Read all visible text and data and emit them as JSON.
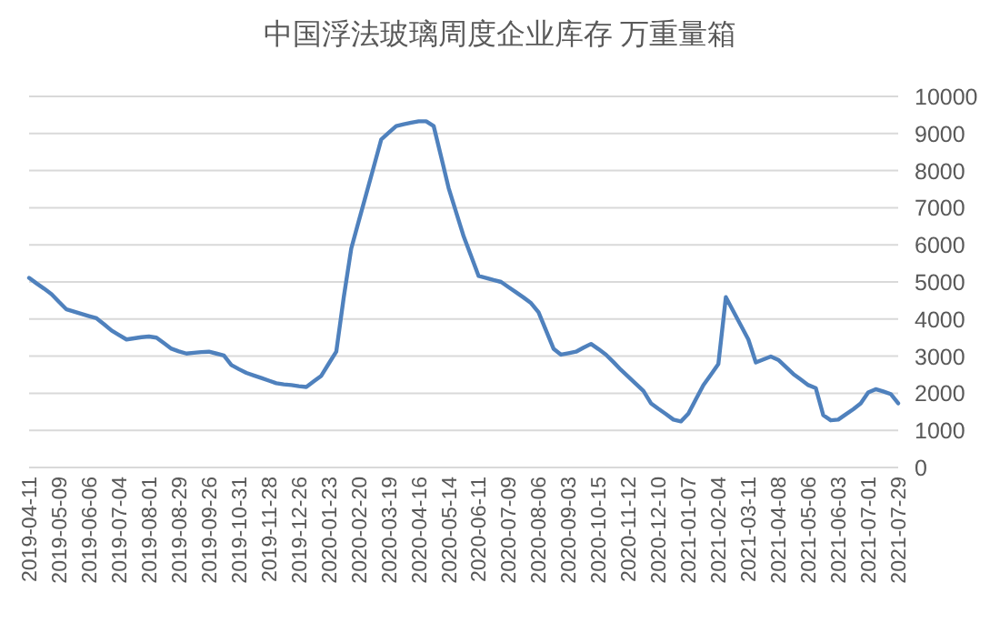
{
  "chart_data": {
    "type": "line",
    "title": "中国浮法玻璃周度企业库存 万重量箱",
    "categories": [
      "2019-04-11",
      null,
      null,
      null,
      "2019-05-09",
      null,
      null,
      null,
      "2019-06-06",
      null,
      null,
      null,
      "2019-07-04",
      null,
      null,
      null,
      "2019-08-01",
      null,
      null,
      null,
      "2019-08-29",
      null,
      null,
      null,
      "2019-09-26",
      null,
      null,
      null,
      "2019-10-31",
      null,
      null,
      null,
      "2019-11-28",
      null,
      null,
      null,
      "2019-12-26",
      null,
      null,
      null,
      "2020-01-23",
      null,
      null,
      null,
      "2020-02-20",
      null,
      null,
      null,
      "2020-03-19",
      null,
      null,
      null,
      "2020-04-16",
      null,
      null,
      null,
      "2020-05-14",
      null,
      null,
      null,
      "2020-06-11",
      null,
      null,
      null,
      "2020-07-09",
      null,
      null,
      null,
      "2020-08-06",
      null,
      null,
      null,
      "2020-09-03",
      null,
      null,
      null,
      "2020-10-15",
      null,
      null,
      null,
      "2020-11-12",
      null,
      null,
      null,
      "2020-12-10",
      null,
      null,
      null,
      "2021-01-07",
      null,
      null,
      null,
      "2021-02-04",
      null,
      null,
      null,
      "2021-03-11",
      null,
      null,
      null,
      "2021-04-08",
      null,
      null,
      null,
      "2021-05-06",
      null,
      null,
      null,
      "2021-06-03",
      null,
      null,
      null,
      "2021-07-01",
      null,
      null,
      null,
      "2021-07-29"
    ],
    "values": [
      5110,
      4960,
      4820,
      4670,
      4460,
      4260,
      4200,
      4140,
      4080,
      4020,
      3860,
      3690,
      3570,
      3450,
      3480,
      3510,
      3530,
      3500,
      3350,
      3200,
      3130,
      3070,
      3090,
      3110,
      3120,
      3070,
      3020,
      2760,
      2650,
      2550,
      2480,
      2410,
      2340,
      2270,
      2240,
      2220,
      2190,
      2170,
      2320,
      2470,
      2800,
      3120,
      4590,
      5900,
      6640,
      7370,
      8100,
      8840,
      9020,
      9200,
      9250,
      9290,
      9330,
      9330,
      9200,
      8370,
      7530,
      6880,
      6230,
      5700,
      5160,
      5110,
      5050,
      5000,
      4860,
      4720,
      4580,
      4430,
      4180,
      3690,
      3200,
      3040,
      3080,
      3120,
      3230,
      3330,
      3190,
      3040,
      2840,
      2630,
      2440,
      2250,
      2060,
      1730,
      1580,
      1440,
      1290,
      1240,
      1450,
      1840,
      2220,
      2500,
      2790,
      4590,
      4210,
      3830,
      3450,
      2830,
      2910,
      2990,
      2900,
      2710,
      2520,
      2370,
      2220,
      2140,
      1410,
      1270,
      1290,
      1430,
      1570,
      1730,
      2020,
      2110,
      2050,
      1980,
      1730
    ],
    "color": "#4f81bd",
    "ylim": [
      0,
      10000
    ],
    "yticks": [
      0,
      1000,
      2000,
      3000,
      4000,
      5000,
      6000,
      7000,
      8000,
      9000,
      10000
    ],
    "grid": "y"
  }
}
